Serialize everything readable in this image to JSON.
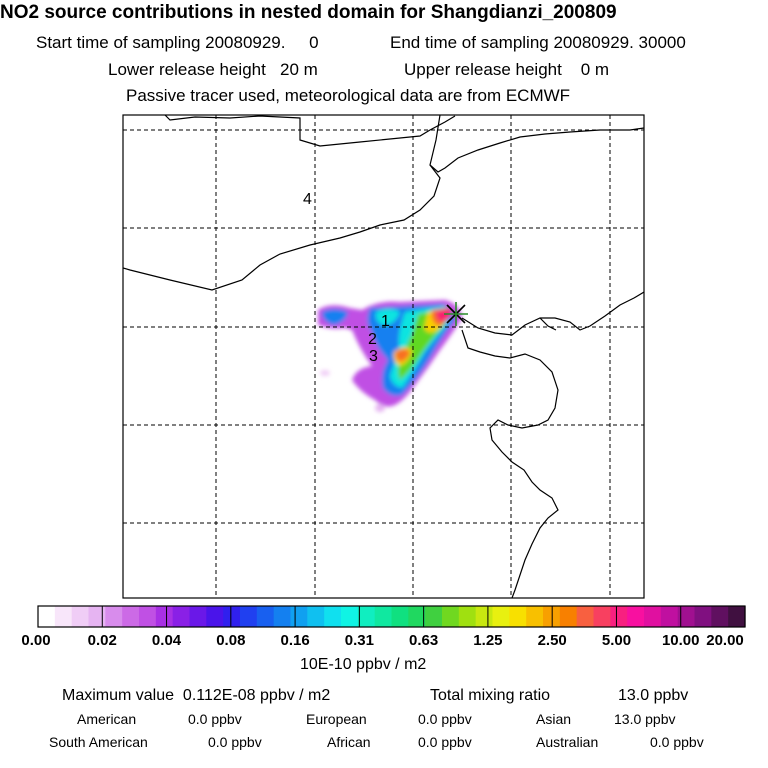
{
  "header": {
    "title": "NO2 source contributions in nested domain for Shangdianzi_200809",
    "start_label": "Start time of sampling 20080929.",
    "start_hour": "0",
    "end_label": "End time of sampling 20080929. 30000",
    "lower_label": "Lower release height",
    "lower_value": "20 m",
    "upper_label": "Upper release height",
    "upper_value": "0 m",
    "tracer_note": "Passive tracer used, meteorological data are from ECMWF"
  },
  "chart_data": {
    "type": "heatmap",
    "title": "NO2 source contributions in nested domain for Shangdianzi_200809",
    "receptor": "Shangdianzi",
    "region_labels": [
      "1",
      "2",
      "3",
      "4"
    ],
    "colorbar": {
      "tick_labels": [
        "0.00",
        "0.02",
        "0.04",
        "0.08",
        "0.16",
        "0.31",
        "0.63",
        "1.25",
        "2.50",
        "5.00",
        "10.00",
        "20.00"
      ],
      "unit": "10E-10 ppbv / m2",
      "colors": [
        "#ffffff",
        "#f8e6fa",
        "#f0cdf6",
        "#e6b4f2",
        "#d88cec",
        "#cc6ae6",
        "#c050e4",
        "#a830e4",
        "#8a20e6",
        "#6a18e8",
        "#4a14ea",
        "#3020ee",
        "#2040f0",
        "#1860f0",
        "#1480f0",
        "#10a0f0",
        "#10c0f0",
        "#10e0ef",
        "#10f4e4",
        "#10eec0",
        "#10e8a0",
        "#10e080",
        "#20d860",
        "#40d040",
        "#70d820",
        "#a0e010",
        "#c8e810",
        "#e8f010",
        "#f8e000",
        "#f8c000",
        "#f8a000",
        "#f88000",
        "#f86040",
        "#f84060",
        "#f82080",
        "#f810a0",
        "#e010a0",
        "#c010a0",
        "#a01090",
        "#801080",
        "#601060",
        "#401040"
      ]
    },
    "stats": {
      "max_label": "Maximum value",
      "max_value": "0.112E-08 ppbv / m2",
      "total_label": "Total mixing ratio",
      "total_value": "13.0 ppbv"
    },
    "regions": [
      {
        "name": "American",
        "value": "0.0 ppbv"
      },
      {
        "name": "European",
        "value": "0.0 ppbv"
      },
      {
        "name": "Asian",
        "value": "13.0 ppbv"
      },
      {
        "name": "South American",
        "value": "0.0 ppbv"
      },
      {
        "name": "African",
        "value": "0.0 ppbv"
      },
      {
        "name": "Australian",
        "value": "0.0 ppbv"
      }
    ]
  }
}
